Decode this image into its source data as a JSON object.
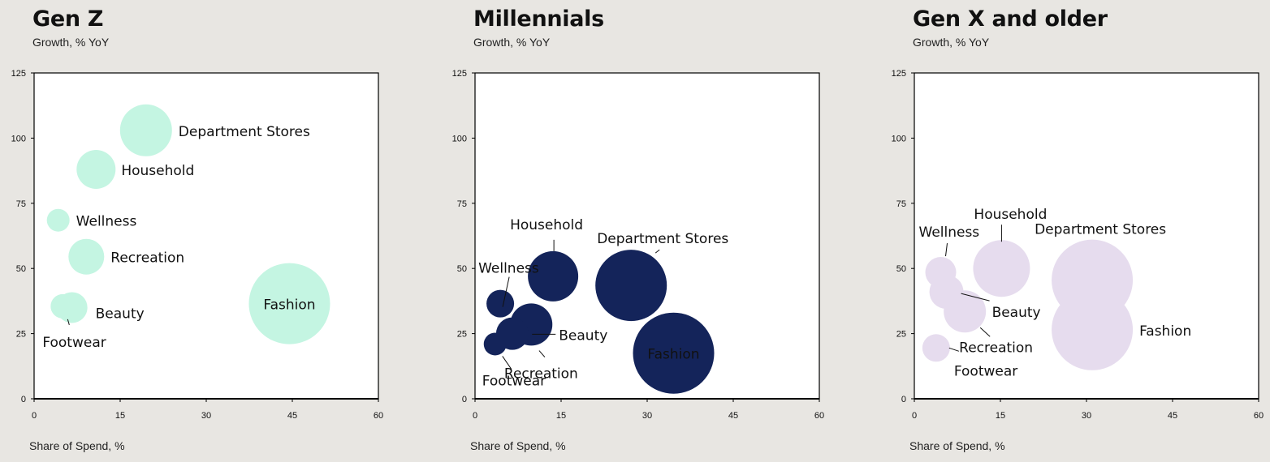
{
  "colors": {
    "background": "#e8e6e2",
    "plot_bg": "#ffffff",
    "axis": "#000000"
  },
  "chart_data": [
    {
      "type": "scatter",
      "title": "Gen Z",
      "ylabel": "Growth, % YoY",
      "xlabel": "Share of Spend, %",
      "xlim": [
        0,
        60
      ],
      "ylim": [
        0,
        125
      ],
      "xticks": [
        "0",
        "15",
        "30",
        "45",
        "60"
      ],
      "yticks": [
        "0",
        "25",
        "50",
        "75",
        "100",
        "125"
      ],
      "color": "#c4f5e2",
      "points": [
        {
          "name": "Department Stores",
          "x": 19.5,
          "y": 103,
          "size": 32
        },
        {
          "name": "Household",
          "x": 10.8,
          "y": 88,
          "size": 24
        },
        {
          "name": "Wellness",
          "x": 4.2,
          "y": 68.5,
          "size": 14
        },
        {
          "name": "Recreation",
          "x": 9.1,
          "y": 54.5,
          "size": 22
        },
        {
          "name": "Beauty",
          "x": 6.6,
          "y": 35,
          "size": 19
        },
        {
          "name": "Footwear",
          "x": 5.0,
          "y": 35.5,
          "size": 15
        },
        {
          "name": "Fashion",
          "x": 44.5,
          "y": 36.5,
          "size": 50,
          "label_inside": true
        }
      ]
    },
    {
      "type": "scatter",
      "title": "Millennials",
      "ylabel": "Growth, % YoY",
      "xlabel": "Share of Spend, %",
      "xlim": [
        0,
        60
      ],
      "ylim": [
        0,
        125
      ],
      "xticks": [
        "0",
        "15",
        "30",
        "45",
        "60"
      ],
      "yticks": [
        "0",
        "25",
        "50",
        "75",
        "100",
        "125"
      ],
      "color": "#14245a",
      "points": [
        {
          "name": "Household",
          "x": 13.6,
          "y": 47,
          "size": 31
        },
        {
          "name": "Wellness",
          "x": 4.4,
          "y": 36.5,
          "size": 17
        },
        {
          "name": "Department Stores",
          "x": 27.2,
          "y": 43.5,
          "size": 44
        },
        {
          "name": "Beauty",
          "x": 9.8,
          "y": 28.5,
          "size": 26
        },
        {
          "name": "Recreation",
          "x": 6.5,
          "y": 25,
          "size": 20
        },
        {
          "name": "Footwear",
          "x": 3.5,
          "y": 21,
          "size": 14
        },
        {
          "name": "Fashion",
          "x": 34.6,
          "y": 17.5,
          "size": 50,
          "label_inside": true
        }
      ]
    },
    {
      "type": "scatter",
      "title": "Gen X and older",
      "ylabel": "Growth, % YoY",
      "xlabel": "Share of Spend, %",
      "xlim": [
        0,
        60
      ],
      "ylim": [
        0,
        125
      ],
      "xticks": [
        "0",
        "15",
        "30",
        "45",
        "60"
      ],
      "yticks": [
        "0",
        "25",
        "50",
        "75",
        "100",
        "125"
      ],
      "color": "#e6dcee",
      "points": [
        {
          "name": "Household",
          "x": 15.2,
          "y": 50,
          "size": 35
        },
        {
          "name": "Wellness",
          "x": 4.6,
          "y": 48.5,
          "size": 19
        },
        {
          "name": "Department Stores",
          "x": 31.0,
          "y": 45.5,
          "size": 50
        },
        {
          "name": "Beauty",
          "x": 5.6,
          "y": 41,
          "size": 21
        },
        {
          "name": "Recreation",
          "x": 8.8,
          "y": 33.5,
          "size": 26
        },
        {
          "name": "Footwear",
          "x": 3.8,
          "y": 19.5,
          "size": 17
        },
        {
          "name": "Fashion",
          "x": 31.0,
          "y": 26.5,
          "size": 50
        }
      ]
    }
  ]
}
